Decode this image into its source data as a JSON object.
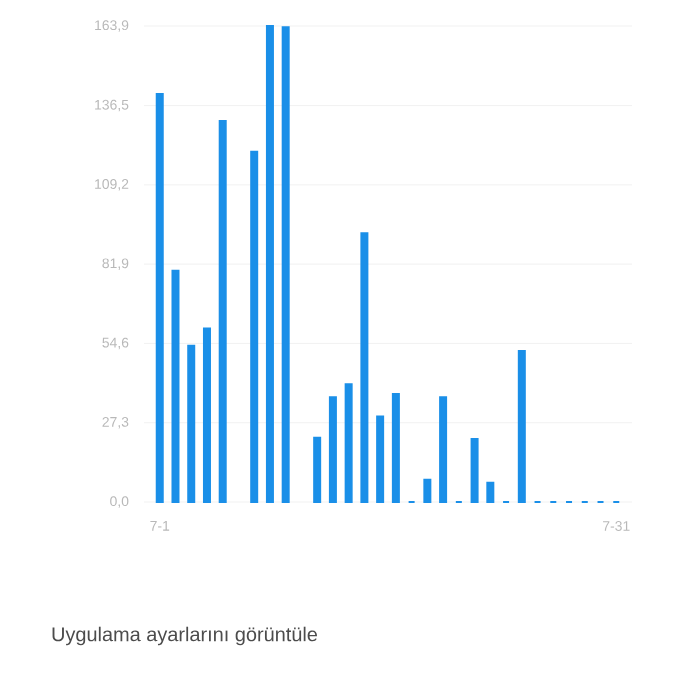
{
  "chart_data": {
    "type": "bar",
    "categories": [
      "7-1",
      null,
      null,
      null,
      null,
      null,
      null,
      null,
      null,
      null,
      null,
      null,
      null,
      null,
      null,
      null,
      null,
      null,
      null,
      null,
      null,
      null,
      null,
      null,
      null,
      null,
      null,
      null,
      null,
      "7-31"
    ],
    "values": [
      140.5,
      79.6,
      53.8,
      59.7,
      131.2,
      null,
      120.6,
      163.9,
      163.5,
      null,
      22.1,
      36.1,
      40.5,
      92.5,
      29.4,
      37.2,
      0,
      7.7,
      36.1,
      0,
      21.7,
      6.6,
      0,
      52.0,
      0,
      0,
      0,
      0,
      0,
      0
    ],
    "color": "#1a8fe8",
    "ylim": [
      0,
      163.9
    ],
    "yticks": [
      {
        "value": 0,
        "label": "0,0"
      },
      {
        "value": 27.3,
        "label": "27,3"
      },
      {
        "value": 54.6,
        "label": "54,6"
      },
      {
        "value": 81.9,
        "label": "81,9"
      },
      {
        "value": 109.2,
        "label": "109,2"
      },
      {
        "value": 136.5,
        "label": "136,5"
      },
      {
        "value": 163.9,
        "label": "163,9"
      }
    ],
    "grid": "y",
    "annotations": [
      "Uygulama ayarlarını görüntüle"
    ]
  }
}
